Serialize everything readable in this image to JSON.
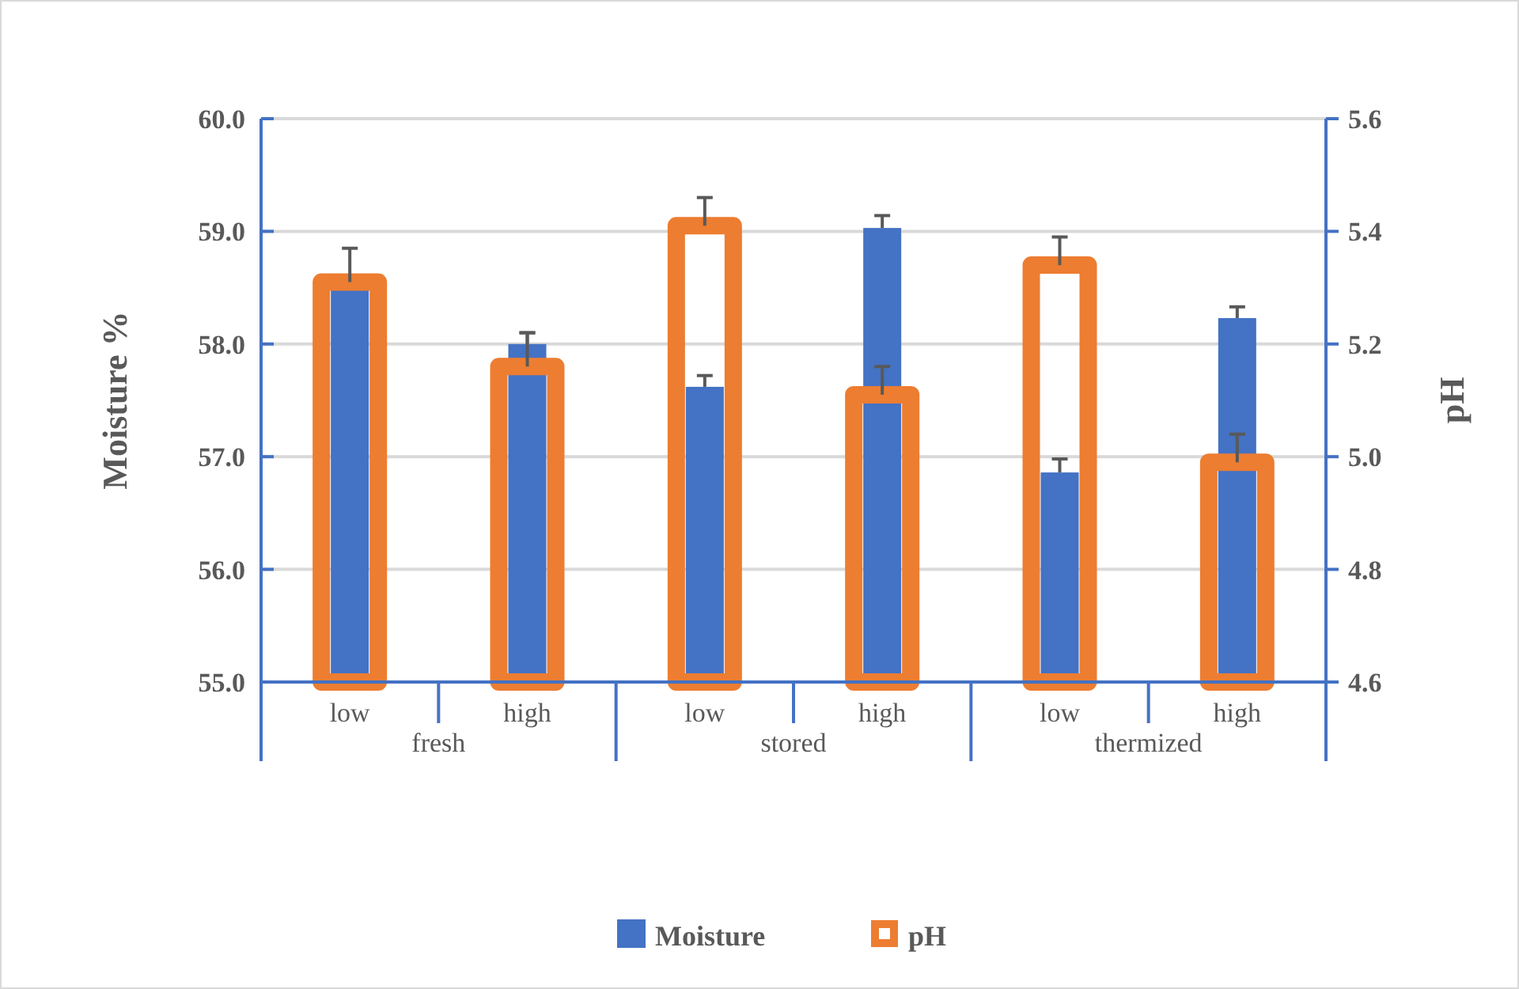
{
  "chart_data": {
    "type": "bar",
    "ylabel": "Moisture %",
    "y2label": "pH",
    "categories": [
      "low",
      "high",
      "low",
      "high",
      "low",
      "high"
    ],
    "annotations": [
      "fresh",
      "stored",
      "thermized"
    ],
    "series": [
      {
        "name": "Moisture",
        "color": "#4472c4",
        "values": [
          58.5,
          58.0,
          57.62,
          59.03,
          56.86,
          58.23
        ],
        "errors": [
          null,
          [
            58.0,
            58.1
          ],
          [
            57.62,
            57.72
          ],
          [
            59.03,
            59.14
          ],
          [
            56.86,
            56.98
          ],
          [
            58.23,
            58.33
          ]
        ]
      },
      {
        "name": "pH",
        "type": "bar",
        "axis": "y2",
        "color": "#ed7d31",
        "values": [
          5.31,
          5.16,
          5.41,
          5.11,
          5.34,
          4.99
        ],
        "errors": [
          [
            5.31,
            5.37
          ],
          [
            5.16,
            5.22
          ],
          [
            5.41,
            5.46
          ],
          [
            5.11,
            5.16
          ],
          [
            5.34,
            5.39
          ],
          [
            4.99,
            5.04
          ]
        ]
      }
    ],
    "ylim": [
      55,
      60
    ],
    "yticks": [
      {
        "value": 55,
        "label": "55.0"
      },
      {
        "value": 56,
        "label": "56.0"
      },
      {
        "value": 57,
        "label": "57.0"
      },
      {
        "value": 58,
        "label": "58.0"
      },
      {
        "value": 59,
        "label": "59.0"
      },
      {
        "value": 60,
        "label": "60.0"
      }
    ],
    "y2lim": [
      4.6,
      5.6
    ],
    "y2ticks": [
      4.6,
      4.8,
      {
        "value": 5,
        "label": "5.0"
      },
      5.2,
      5.4,
      5.6
    ],
    "grid": "y",
    "legend": "bottom"
  }
}
